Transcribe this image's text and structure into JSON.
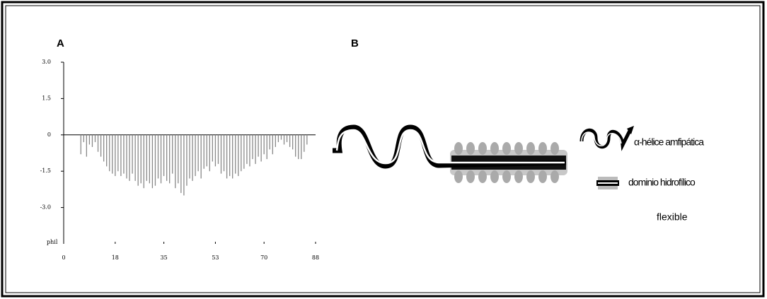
{
  "chart_data": {
    "type": "bar",
    "panel_label": "A",
    "y_label": "phil",
    "x": [
      6,
      7,
      8,
      9,
      10,
      11,
      12,
      13,
      14,
      15,
      16,
      17,
      18,
      19,
      20,
      21,
      22,
      23,
      24,
      25,
      26,
      27,
      28,
      29,
      30,
      31,
      32,
      33,
      34,
      35,
      36,
      37,
      38,
      39,
      40,
      41,
      42,
      43,
      44,
      45,
      46,
      47,
      48,
      49,
      50,
      51,
      52,
      53,
      54,
      55,
      56,
      57,
      58,
      59,
      60,
      61,
      62,
      63,
      64,
      65,
      66,
      67,
      68,
      69,
      70,
      71,
      72,
      73,
      74,
      75,
      76,
      77,
      78,
      79,
      80,
      81,
      82,
      83,
      84,
      85
    ],
    "values": [
      -0.8,
      -0.3,
      -0.9,
      -0.4,
      -0.5,
      -0.3,
      -0.7,
      -0.9,
      -1.1,
      -1.3,
      -1.5,
      -1.6,
      -1.7,
      -1.5,
      -1.7,
      -1.6,
      -1.8,
      -1.9,
      -1.6,
      -1.9,
      -2.1,
      -2.0,
      -2.2,
      -1.9,
      -2.0,
      -2.2,
      -2.1,
      -1.8,
      -2.0,
      -1.7,
      -1.9,
      -2.0,
      -1.6,
      -2.2,
      -2.0,
      -2.4,
      -2.5,
      -2.1,
      -1.8,
      -1.9,
      -1.7,
      -1.5,
      -1.8,
      -1.4,
      -1.3,
      -1.5,
      -1.1,
      -1.3,
      -1.2,
      -1.6,
      -1.5,
      -1.8,
      -1.7,
      -1.8,
      -1.6,
      -1.7,
      -1.5,
      -1.4,
      -1.2,
      -1.3,
      -1.0,
      -1.2,
      -0.9,
      -1.1,
      -0.8,
      -1.0,
      -0.6,
      -0.8,
      -0.5,
      -0.3,
      -0.2,
      -0.4,
      -0.3,
      -0.5,
      -0.6,
      -0.9,
      -1.0,
      -1.0,
      -0.7,
      -0.4
    ],
    "color": "#888888",
    "xlim": [
      0,
      88
    ],
    "xticks": [
      0,
      18,
      35,
      53,
      70,
      88
    ],
    "ylim": [
      -4.5,
      3.0
    ],
    "yticks": [
      {
        "value": 3,
        "label": "3.0"
      },
      1.5,
      0,
      -1.5,
      {
        "value": -3,
        "label": "-3.0"
      }
    ]
  },
  "diagram": {
    "panel_label": "B",
    "legend": [
      "α-hélice amfipática",
      "dominio hidrofílico"
    ],
    "note": "flexible"
  }
}
